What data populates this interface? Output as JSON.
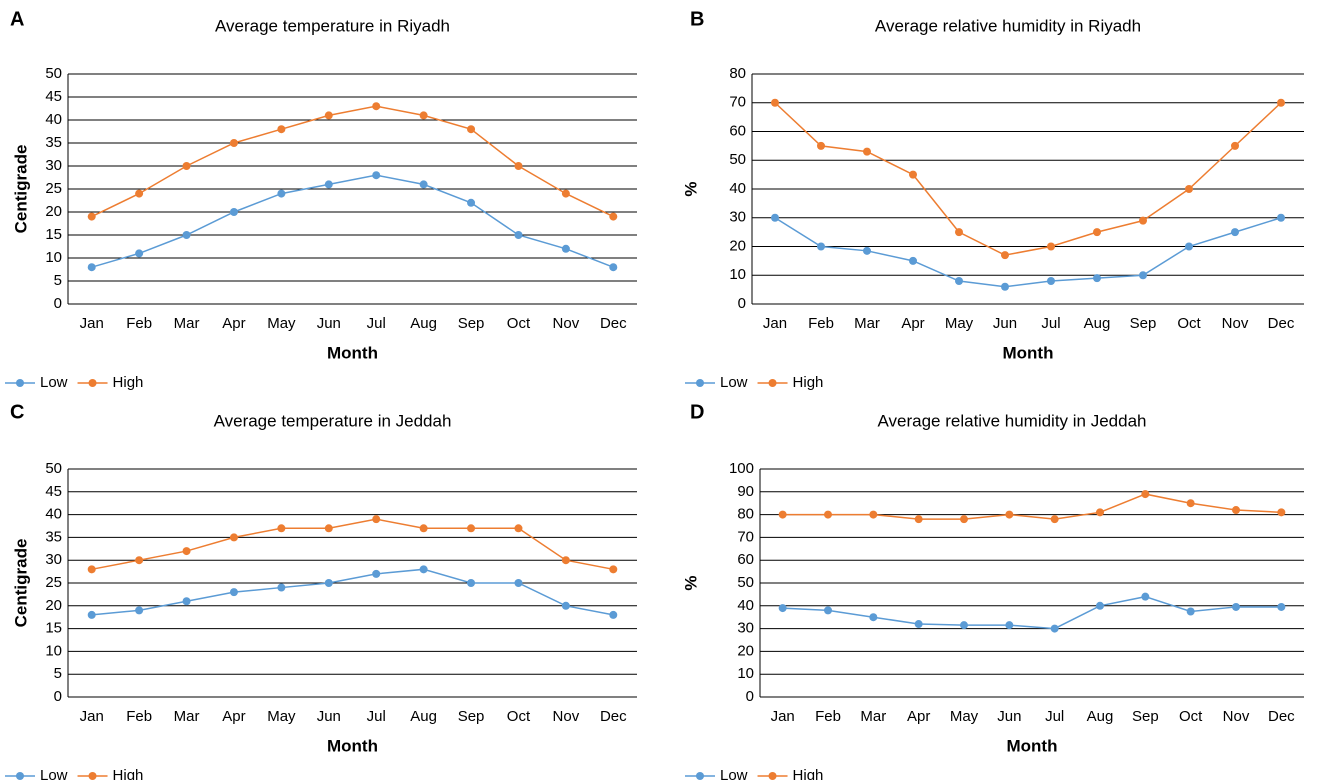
{
  "chart_data": [
    {
      "panel": "A",
      "type": "line",
      "title": "Average temperature in Riyadh",
      "xlabel": "Month",
      "ylabel": "Centigrade",
      "categories": [
        "Jan",
        "Feb",
        "Mar",
        "Apr",
        "May",
        "Jun",
        "Jul",
        "Aug",
        "Sep",
        "Oct",
        "Nov",
        "Dec"
      ],
      "series": [
        {
          "name": "Low",
          "color": "#5b9bd5",
          "values": [
            8,
            11,
            15,
            20,
            24,
            26,
            28,
            26,
            22,
            15,
            12,
            8
          ]
        },
        {
          "name": "High",
          "color": "#ed7d31",
          "values": [
            19,
            24,
            30,
            35,
            38,
            41,
            43,
            41,
            38,
            30,
            24,
            19
          ]
        }
      ],
      "ylim": [
        0,
        50
      ],
      "yticks": [
        0,
        5,
        10,
        15,
        20,
        25,
        30,
        35,
        40,
        45,
        50
      ],
      "grid": true,
      "legend": "bottom-left"
    },
    {
      "panel": "B",
      "type": "line",
      "title": "Average relative humidity in Riyadh",
      "xlabel": "Month",
      "ylabel": "%",
      "categories": [
        "Jan",
        "Feb",
        "Mar",
        "Apr",
        "May",
        "Jun",
        "Jul",
        "Aug",
        "Sep",
        "Oct",
        "Nov",
        "Dec"
      ],
      "series": [
        {
          "name": "Low",
          "color": "#5b9bd5",
          "values": [
            30,
            20,
            18.5,
            15,
            8,
            6,
            8,
            9,
            10,
            20,
            25,
            30
          ]
        },
        {
          "name": "High",
          "color": "#ed7d31",
          "values": [
            70,
            55,
            53,
            45,
            25,
            17,
            20,
            25,
            29,
            40,
            55,
            70
          ]
        }
      ],
      "ylim": [
        0,
        80
      ],
      "yticks": [
        0,
        10,
        20,
        30,
        40,
        50,
        60,
        70,
        80
      ],
      "grid": true,
      "legend": "bottom-left"
    },
    {
      "panel": "C",
      "type": "line",
      "title": "Average temperature in Jeddah",
      "xlabel": "Month",
      "ylabel": "Centigrade",
      "categories": [
        "Jan",
        "Feb",
        "Mar",
        "Apr",
        "May",
        "Jun",
        "Jul",
        "Aug",
        "Sep",
        "Oct",
        "Nov",
        "Dec"
      ],
      "series": [
        {
          "name": "Low",
          "color": "#5b9bd5",
          "values": [
            18,
            19,
            21,
            23,
            24,
            25,
            27,
            28,
            25,
            25,
            20,
            18
          ]
        },
        {
          "name": "High",
          "color": "#ed7d31",
          "values": [
            28,
            30,
            32,
            35,
            37,
            37,
            39,
            37,
            37,
            37,
            30,
            28
          ]
        }
      ],
      "ylim": [
        0,
        50
      ],
      "yticks": [
        0,
        5,
        10,
        15,
        20,
        25,
        30,
        35,
        40,
        45,
        50
      ],
      "grid": true,
      "legend": "bottom-left"
    },
    {
      "panel": "D",
      "type": "line",
      "title": "Average relative humidity in Jeddah",
      "xlabel": "Month",
      "ylabel": "%",
      "categories": [
        "Jan",
        "Feb",
        "Mar",
        "Apr",
        "May",
        "Jun",
        "Jul",
        "Aug",
        "Sep",
        "Oct",
        "Nov",
        "Dec"
      ],
      "series": [
        {
          "name": "Low",
          "color": "#5b9bd5",
          "values": [
            39,
            38,
            35,
            32,
            31.5,
            31.5,
            30,
            40,
            44,
            37.5,
            39.5,
            39.5
          ]
        },
        {
          "name": "High",
          "color": "#ed7d31",
          "values": [
            80,
            80,
            80,
            78,
            78,
            80,
            78,
            81,
            89,
            85,
            82,
            81
          ]
        }
      ],
      "ylim": [
        0,
        100
      ],
      "yticks": [
        0,
        10,
        20,
        30,
        40,
        50,
        60,
        70,
        80,
        90,
        100
      ],
      "grid": true,
      "legend": "bottom-left"
    }
  ]
}
